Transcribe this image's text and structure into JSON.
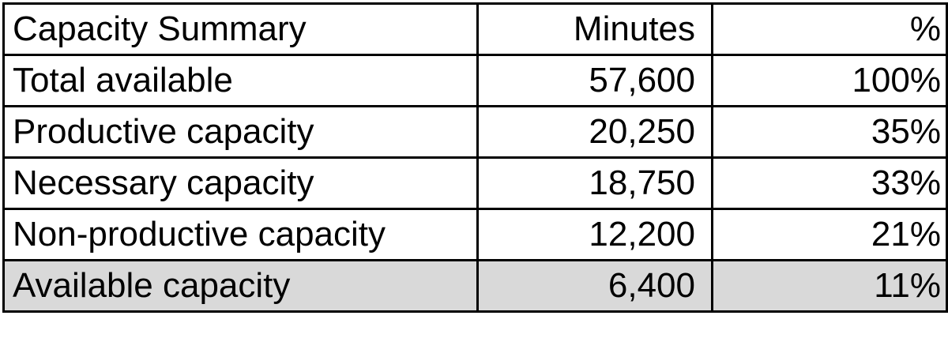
{
  "table": {
    "headers": [
      "Capacity Summary",
      "Minutes",
      "%"
    ],
    "rows": [
      {
        "label": "Total available",
        "minutes": "57,600",
        "percent": "100%"
      },
      {
        "label": "Productive capacity",
        "minutes": "20,250",
        "percent": "35%"
      },
      {
        "label": "Necessary capacity",
        "minutes": "18,750",
        "percent": "33%"
      },
      {
        "label": "Non-productive capacity",
        "minutes": "12,200",
        "percent": "21%"
      },
      {
        "label": "Available capacity",
        "minutes": "6,400",
        "percent": "11%"
      }
    ]
  },
  "colors": {
    "highlight_row_fill": "#d9d9d9",
    "border": "#000000",
    "text": "#000000"
  }
}
